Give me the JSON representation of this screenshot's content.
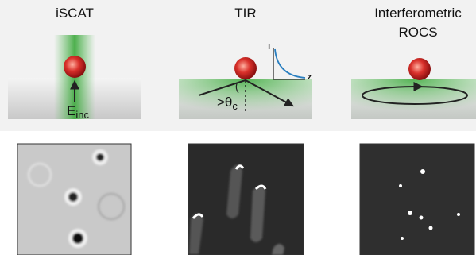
{
  "panels": [
    {
      "title": "iSCAT",
      "field_label": "E",
      "field_subscript": "inc"
    },
    {
      "title": "TIR",
      "angle_label": ">θ",
      "angle_subscript": "c",
      "inset_y_label": "I",
      "inset_x_label": "z"
    },
    {
      "title_lines": [
        "Interferometric",
        "ROCS"
      ]
    }
  ]
}
